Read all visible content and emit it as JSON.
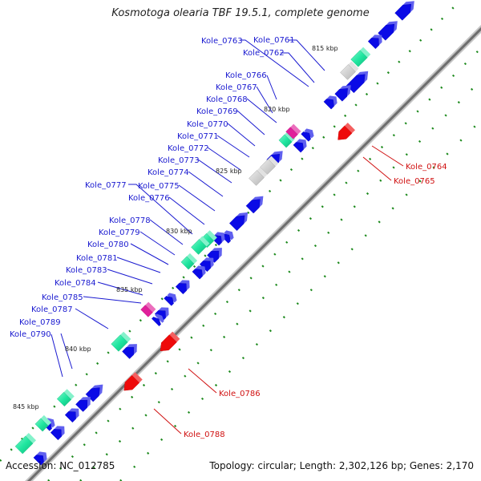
{
  "title": "Kosmotoga olearia TBF 19.5.1, complete genome",
  "footer": {
    "accession": "Accession: NC_012785",
    "stats": "Topology: circular; Length: 2,302,126 bp; Genes: 2,170"
  },
  "colors": {
    "forward_gene": "#0a0ae6",
    "reverse_gene": "#ee0a0a",
    "forward_label": "#1a1ad0",
    "reverse_label": "#d01010",
    "rna_gene": "#22e8a0",
    "pseudo_gene": "#c8c8c8",
    "misc_feature": "#e0209a",
    "backbone": "#888888",
    "dots": "#1d8a1d"
  },
  "ticks": [
    "815 kbp",
    "820 kbp",
    "825 kbp",
    "830 kbp",
    "835 kbp",
    "840 kbp",
    "845 kbp"
  ],
  "forward_labels": [
    "Kole_0761",
    "Kole_0762",
    "Kole_0763",
    "Kole_0766",
    "Kole_0767",
    "Kole_0768",
    "Kole_0769",
    "Kole_0770",
    "Kole_0771",
    "Kole_0772",
    "Kole_0773",
    "Kole_0774",
    "Kole_0775",
    "Kole_0776",
    "Kole_0777",
    "Kole_0778",
    "Kole_0779",
    "Kole_0780",
    "Kole_0781",
    "Kole_0783",
    "Kole_0784",
    "Kole_0785",
    "Kole_0787",
    "Kole_0789",
    "Kole_0790"
  ],
  "reverse_labels": [
    "Kole_0764",
    "Kole_0765",
    "Kole_0786",
    "Kole_0788"
  ]
}
